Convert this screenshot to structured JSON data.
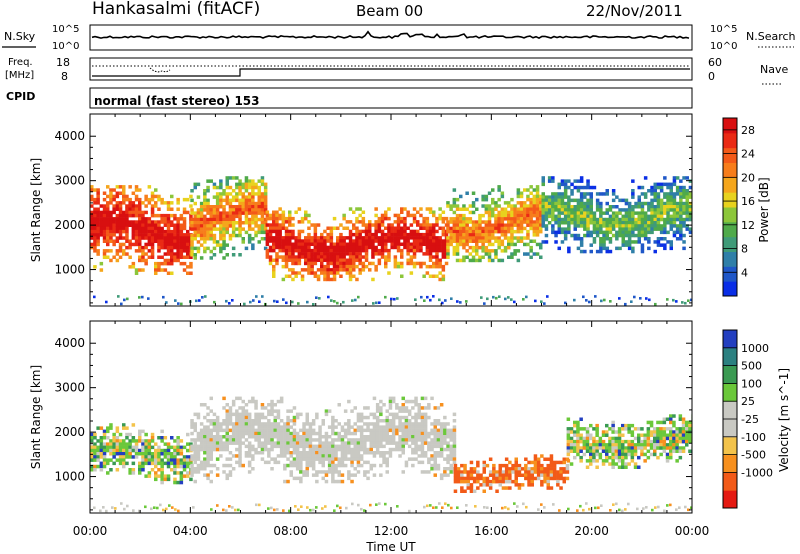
{
  "header": {
    "station": "Hankasalmi (fitACF)",
    "beam": "Beam 00",
    "date": "22/Nov/2011"
  },
  "strips": {
    "nsky_label": "N.Sky",
    "nsky_tick_top": "10^5",
    "nsky_tick_bottom": "10^0",
    "nsearch_label": "N.Search",
    "nsearch_tick_top": "10^5",
    "nsearch_tick_bottom": "10^0",
    "freq_label_line1": "Freq.",
    "freq_label_line2": "[MHz]",
    "freq_tick_top": "18",
    "freq_tick_bottom": "8",
    "nave_label": "Nave",
    "nave_tick_top": "60",
    "nave_tick_bottom": "0",
    "cpid_label": "CPID",
    "cpid_text": "normal (fast stereo) 153"
  },
  "colors": {
    "power": [
      "#0a2ee6",
      "#1f57c8",
      "#2f7fa8",
      "#3f9b78",
      "#4faa4a",
      "#8cc63a",
      "#e8d21e",
      "#f5a61c",
      "#f77d1b",
      "#f35a19",
      "#ea2a14",
      "#d80f10"
    ],
    "velocity": [
      "#e51a12",
      "#f25a18",
      "#f7901e",
      "#f3c34b",
      "#c9c9c3",
      "#c9c9c3",
      "#6bc83a",
      "#3a9a52",
      "#2b8080",
      "#233fc0"
    ]
  },
  "chart_data": [
    {
      "type": "heatmap",
      "panel": "power",
      "ylabel": "Slant Range [km]",
      "xlabel": "",
      "x_ticks": [
        "00:00",
        "04:00",
        "08:00",
        "12:00",
        "16:00",
        "20:00",
        "00:00"
      ],
      "y_ticks": [
        "1000",
        "2000",
        "3000",
        "4000"
      ],
      "ylim": [
        180,
        4500
      ],
      "xlim_hours": [
        0,
        24
      ],
      "colorbar": {
        "label": "Power [dB]",
        "ticks": [
          "4",
          "8",
          "12",
          "16",
          "20",
          "24",
          "28"
        ],
        "range": [
          0,
          30
        ]
      },
      "echo_regions": [
        {
          "t0": 0.0,
          "t1": 4.0,
          "r0": 900,
          "r1": 2900,
          "level": "high"
        },
        {
          "t0": 4.0,
          "t1": 7.0,
          "r0": 1300,
          "r1": 3100,
          "level": "medium"
        },
        {
          "t0": 7.0,
          "t1": 14.2,
          "r0": 800,
          "r1": 2400,
          "level": "high"
        },
        {
          "t0": 14.2,
          "t1": 18.0,
          "r0": 1200,
          "r1": 2900,
          "level": "medium"
        },
        {
          "t0": 18.0,
          "t1": 24.0,
          "r0": 1400,
          "r1": 3100,
          "level": "low"
        }
      ]
    },
    {
      "type": "heatmap",
      "panel": "velocity",
      "ylabel": "Slant Range [km]",
      "xlabel": "Time UT",
      "x_ticks": [
        "00:00",
        "04:00",
        "08:00",
        "12:00",
        "16:00",
        "20:00",
        "00:00"
      ],
      "y_ticks": [
        "1000",
        "2000",
        "3000",
        "4000"
      ],
      "ylim": [
        180,
        4500
      ],
      "xlim_hours": [
        0,
        24
      ],
      "colorbar": {
        "label": "Velocity [m s^-1]",
        "ticks": [
          "1000",
          "500",
          "100",
          "25",
          "-25",
          "-100",
          "-500",
          "-1000"
        ]
      },
      "echo_regions": [
        {
          "t0": 0.0,
          "t1": 4.0,
          "r0": 900,
          "r1": 2200,
          "class": "mixed"
        },
        {
          "t0": 4.0,
          "t1": 14.5,
          "r0": 900,
          "r1": 2800,
          "class": "ground-scatter"
        },
        {
          "t0": 14.5,
          "t1": 19.0,
          "r0": 700,
          "r1": 1500,
          "class": "receding"
        },
        {
          "t0": 19.0,
          "t1": 24.0,
          "r0": 1200,
          "r1": 2400,
          "class": "mixed"
        }
      ]
    }
  ]
}
